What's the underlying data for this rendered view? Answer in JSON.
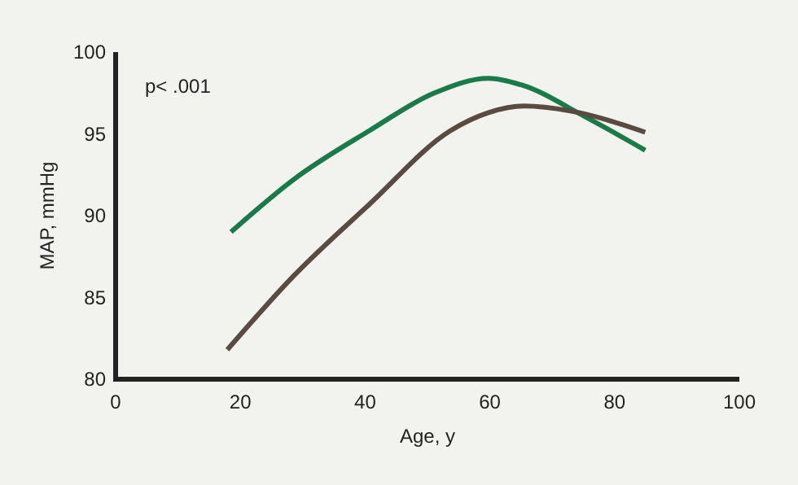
{
  "chart_data": {
    "type": "line",
    "xlabel": "Age, y",
    "ylabel": "MAP, mmHg",
    "annotations": [
      "p< .001"
    ],
    "xlim": [
      0,
      100
    ],
    "xticks": [
      0,
      20,
      40,
      60,
      80,
      100
    ],
    "ylim": [
      80,
      100
    ],
    "yticks": [
      80,
      85,
      90,
      95,
      100
    ],
    "grid": false,
    "series": [
      {
        "color": "#1a7a4a",
        "x": [
          18.5,
          28.5,
          40.7,
          51.1,
          59.8,
          65,
          75.5,
          84.9
        ],
        "values": [
          89.0,
          92.2,
          95.2,
          97.5,
          98.4,
          98.0,
          96.0,
          94.0
        ]
      },
      {
        "color": "#5a4a42",
        "x": [
          17.9,
          28.5,
          40.7,
          53.7,
          59.8,
          65.5,
          72.9,
          84.9
        ],
        "values": [
          81.8,
          86.3,
          90.7,
          95.2,
          96.3,
          96.7,
          96.4,
          95.1
        ]
      }
    ]
  }
}
